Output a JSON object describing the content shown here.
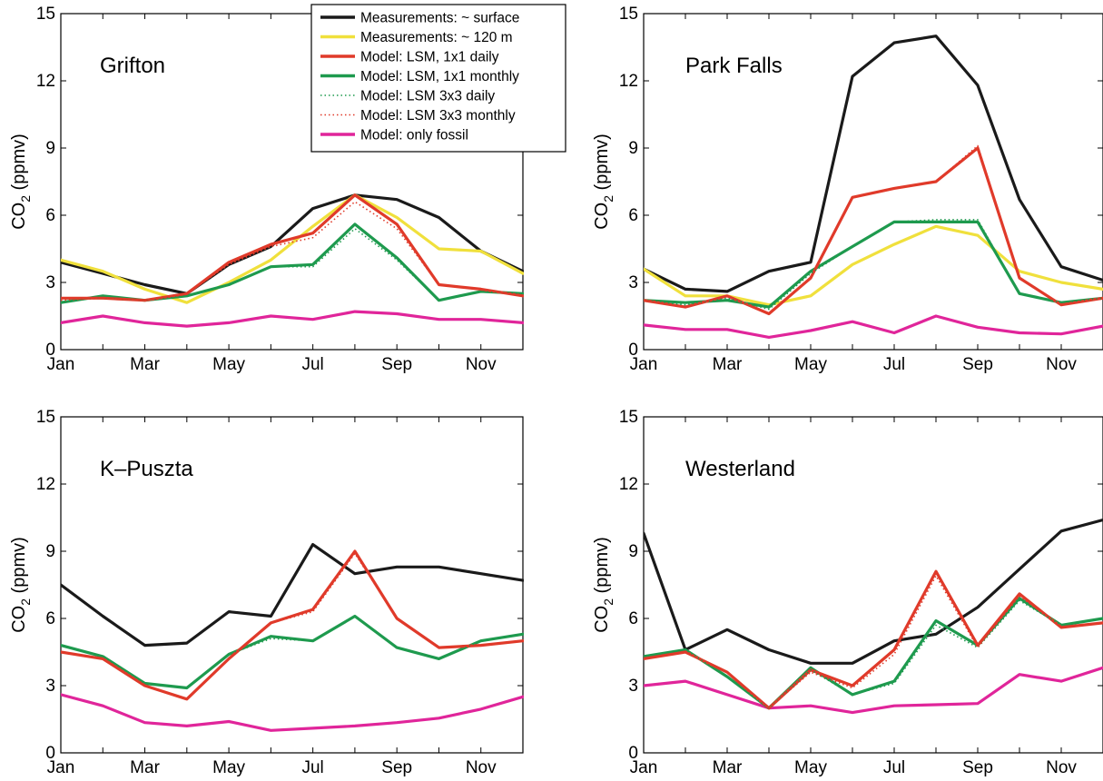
{
  "chart_data": [
    {
      "type": "line",
      "title": "Grifton",
      "ylabel": "CO",
      "ylabel_sub": "2",
      "ylabel_unit": " (ppmv)",
      "ylim": [
        0,
        15
      ],
      "yticks": [
        "0",
        "3",
        "6",
        "9",
        "12",
        "15"
      ],
      "x": [
        "Jan",
        "Feb",
        "Mar",
        "Apr",
        "May",
        "Jun",
        "Jul",
        "Aug",
        "Sep",
        "Oct",
        "Nov",
        "Dec"
      ],
      "xtick_labels": [
        "Jan",
        "Mar",
        "May",
        "Jul",
        "Sep",
        "Nov"
      ],
      "series": [
        {
          "name": "Measurements: ~ surface",
          "values": [
            3.9,
            3.4,
            2.9,
            2.5,
            3.8,
            4.6,
            6.3,
            6.9,
            6.7,
            5.9,
            4.4,
            3.5
          ]
        },
        {
          "name": "Measurements: ~ 120 m",
          "values": [
            4.0,
            3.5,
            2.7,
            2.1,
            3.0,
            4.0,
            5.5,
            6.9,
            5.9,
            4.5,
            4.4,
            3.4
          ]
        },
        {
          "name": "Model: LSM, 1x1 daily",
          "values": [
            2.3,
            2.3,
            2.2,
            2.5,
            3.9,
            4.7,
            5.2,
            6.9,
            5.6,
            2.9,
            2.7,
            2.4
          ]
        },
        {
          "name": "Model: LSM, 1x1 monthly",
          "values": [
            2.1,
            2.4,
            2.2,
            2.4,
            2.9,
            3.7,
            3.8,
            5.6,
            4.1,
            2.2,
            2.6,
            2.5
          ]
        },
        {
          "name": "Model: LSM 3x3 daily",
          "values": [
            2.2,
            2.3,
            2.2,
            2.4,
            2.9,
            3.7,
            3.7,
            5.4,
            4.0,
            2.2,
            2.6,
            2.5
          ]
        },
        {
          "name": "Model: LSM 3x3 monthly",
          "values": [
            2.2,
            2.3,
            2.2,
            2.5,
            3.8,
            4.6,
            5.0,
            6.6,
            5.4,
            2.9,
            2.7,
            2.4
          ]
        },
        {
          "name": "Model: only fossil",
          "values": [
            1.2,
            1.5,
            1.2,
            1.05,
            1.2,
            1.5,
            1.35,
            1.7,
            1.6,
            1.35,
            1.35,
            1.2
          ]
        }
      ]
    },
    {
      "type": "line",
      "title": "Park Falls",
      "ylabel": "CO",
      "ylabel_sub": "2",
      "ylabel_unit": " (ppmv)",
      "ylim": [
        0,
        15
      ],
      "yticks": [
        "0",
        "3",
        "6",
        "9",
        "12",
        "15"
      ],
      "x": [
        "Jan",
        "Feb",
        "Mar",
        "Apr",
        "May",
        "Jun",
        "Jul",
        "Aug",
        "Sep",
        "Oct",
        "Nov",
        "Dec"
      ],
      "xtick_labels": [
        "Jan",
        "Mar",
        "May",
        "Jul",
        "Sep",
        "Nov"
      ],
      "series": [
        {
          "name": "Measurements: ~ surface",
          "values": [
            3.6,
            2.7,
            2.6,
            3.5,
            3.9,
            12.2,
            13.7,
            14.0,
            11.8,
            6.7,
            3.7,
            3.1
          ]
        },
        {
          "name": "Measurements: ~ 120 m",
          "values": [
            3.6,
            2.4,
            2.4,
            2.0,
            2.4,
            3.8,
            4.7,
            5.5,
            5.1,
            3.5,
            3.0,
            2.7
          ]
        },
        {
          "name": "Model: LSM, 1x1 daily",
          "values": [
            2.2,
            1.9,
            2.4,
            1.6,
            3.2,
            6.8,
            7.2,
            7.5,
            9.0,
            3.2,
            2.0,
            2.3
          ]
        },
        {
          "name": "Model: LSM, 1x1 monthly",
          "values": [
            2.2,
            2.1,
            2.2,
            1.9,
            3.5,
            4.6,
            5.7,
            5.7,
            5.7,
            2.5,
            2.1,
            2.3
          ]
        },
        {
          "name": "Model: LSM 3x3 daily",
          "values": [
            2.2,
            2.0,
            2.3,
            1.8,
            3.4,
            4.6,
            5.7,
            5.8,
            5.8,
            2.5,
            2.1,
            2.3
          ]
        },
        {
          "name": "Model: LSM 3x3 monthly",
          "values": [
            2.2,
            1.9,
            2.4,
            1.6,
            3.2,
            6.8,
            7.2,
            7.5,
            9.1,
            3.2,
            2.0,
            2.3
          ]
        },
        {
          "name": "Model: only fossil",
          "values": [
            1.1,
            0.9,
            0.9,
            0.55,
            0.85,
            1.25,
            0.75,
            1.5,
            1.0,
            0.75,
            0.7,
            1.05
          ]
        }
      ]
    },
    {
      "type": "line",
      "title": "K–Puszta",
      "ylabel": "CO",
      "ylabel_sub": "2",
      "ylabel_unit": " (ppmv)",
      "ylim": [
        0,
        15
      ],
      "yticks": [
        "0",
        "3",
        "6",
        "9",
        "12",
        "15"
      ],
      "x": [
        "Jan",
        "Feb",
        "Mar",
        "Apr",
        "May",
        "Jun",
        "Jul",
        "Aug",
        "Sep",
        "Oct",
        "Nov",
        "Dec"
      ],
      "xtick_labels": [
        "Jan",
        "Mar",
        "May",
        "Jul",
        "Sep",
        "Nov"
      ],
      "series": [
        {
          "name": "Measurements: ~ surface",
          "values": [
            7.5,
            6.1,
            4.8,
            4.9,
            6.3,
            6.1,
            9.3,
            8.0,
            8.3,
            8.3,
            8.0,
            7.7
          ]
        },
        {
          "name": "Model: LSM, 1x1 daily",
          "values": [
            4.5,
            4.2,
            3.0,
            2.4,
            4.2,
            5.8,
            6.4,
            9.0,
            6.0,
            4.7,
            4.8,
            5.0
          ]
        },
        {
          "name": "Model: LSM, 1x1 monthly",
          "values": [
            4.8,
            4.3,
            3.1,
            2.9,
            4.4,
            5.2,
            5.0,
            6.1,
            4.7,
            4.2,
            5.0,
            5.3
          ]
        },
        {
          "name": "Model: LSM 3x3 daily",
          "values": [
            4.8,
            4.3,
            3.1,
            2.9,
            4.4,
            5.1,
            5.0,
            6.1,
            4.7,
            4.2,
            5.0,
            5.3
          ]
        },
        {
          "name": "Model: LSM 3x3 monthly",
          "values": [
            4.5,
            4.2,
            3.0,
            2.4,
            4.2,
            5.8,
            6.3,
            8.9,
            6.0,
            4.7,
            4.8,
            5.0
          ]
        },
        {
          "name": "Model: only fossil",
          "values": [
            2.6,
            2.1,
            1.35,
            1.2,
            1.4,
            1.0,
            1.1,
            1.2,
            1.35,
            1.55,
            1.95,
            2.5
          ]
        }
      ]
    },
    {
      "type": "line",
      "title": "Westerland",
      "ylabel": "CO",
      "ylabel_sub": "2",
      "ylabel_unit": " (ppmv)",
      "ylim": [
        0,
        15
      ],
      "yticks": [
        "0",
        "3",
        "6",
        "9",
        "12",
        "15"
      ],
      "x": [
        "Jan",
        "Feb",
        "Mar",
        "Apr",
        "May",
        "Jun",
        "Jul",
        "Aug",
        "Sep",
        "Oct",
        "Nov",
        "Dec"
      ],
      "xtick_labels": [
        "Jan",
        "Mar",
        "May",
        "Jul",
        "Sep",
        "Nov"
      ],
      "series": [
        {
          "name": "Measurements: ~ surface",
          "values": [
            9.8,
            4.6,
            5.5,
            4.6,
            4.0,
            4.0,
            5.0,
            5.3,
            6.5,
            8.2,
            9.9,
            10.4
          ]
        },
        {
          "name": "Model: LSM, 1x1 daily",
          "values": [
            4.2,
            4.5,
            3.6,
            2.0,
            3.7,
            3.0,
            4.6,
            8.1,
            4.8,
            7.1,
            5.6,
            5.8
          ]
        },
        {
          "name": "Model: LSM, 1x1 monthly",
          "values": [
            4.3,
            4.6,
            3.4,
            2.0,
            3.8,
            2.6,
            3.2,
            5.9,
            4.8,
            6.9,
            5.7,
            6.0
          ]
        },
        {
          "name": "Model: LSM 3x3 daily",
          "values": [
            4.3,
            4.6,
            3.4,
            2.0,
            3.7,
            2.6,
            3.1,
            5.7,
            4.7,
            6.8,
            5.7,
            6.0
          ]
        },
        {
          "name": "Model: LSM 3x3 monthly",
          "values": [
            4.2,
            4.5,
            3.6,
            2.0,
            3.6,
            2.9,
            4.4,
            7.9,
            4.7,
            7.0,
            5.6,
            5.8
          ]
        },
        {
          "name": "Model: only fossil",
          "values": [
            3.0,
            3.2,
            2.6,
            2.0,
            2.1,
            1.8,
            2.1,
            2.15,
            2.2,
            3.5,
            3.2,
            3.8
          ]
        }
      ]
    }
  ],
  "legend": {
    "placement": "top-right of top-left panel",
    "entries": [
      {
        "label": "Measurements: ~ surface",
        "color": "#1a1a1a",
        "style": "solid"
      },
      {
        "label": "Measurements: ~ 120 m",
        "color": "#f0e03c",
        "style": "solid"
      },
      {
        "label": "Model: LSM, 1x1 daily",
        "color": "#e03a2a",
        "style": "solid"
      },
      {
        "label": "Model: LSM, 1x1 monthly",
        "color": "#1e9a4e",
        "style": "solid"
      },
      {
        "label": "Model: LSM 3x3 daily",
        "color": "#1e9a4e",
        "style": "dotted"
      },
      {
        "label": "Model: LSM 3x3 monthly",
        "color": "#e03a2a",
        "style": "dotted"
      },
      {
        "label": "Model: only fossil",
        "color": "#e0259a",
        "style": "solid"
      }
    ]
  },
  "colors": {
    "surface": "#1a1a1a",
    "m120": "#f0e03c",
    "red": "#e03a2a",
    "green": "#1e9a4e",
    "fossil": "#e0259a"
  }
}
